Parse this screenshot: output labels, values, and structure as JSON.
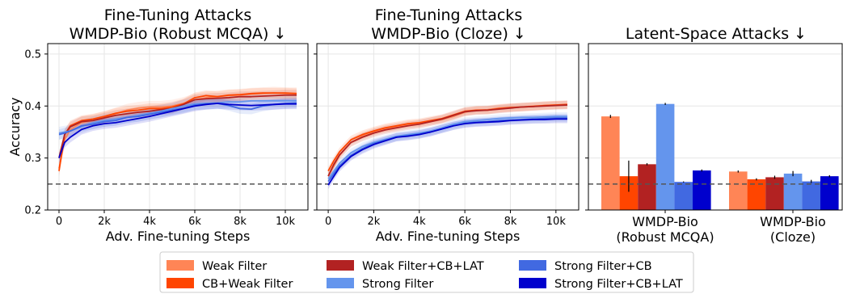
{
  "colors": {
    "weak_filter": "#ff8556",
    "cb_weak_filter": "#ff4500",
    "weak_filter_cb_lat": "#b22222",
    "strong_filter": "#6495ed",
    "strong_filter_cb": "#4169e1",
    "strong_filter_cb_lat": "#0000cd",
    "reference_line": "#555555",
    "grid": "#e6e6e6"
  },
  "legend": [
    "Weak Filter",
    "CB+Weak Filter",
    "Weak Filter+CB+LAT",
    "Strong Filter",
    "Strong Filter+CB",
    "Strong Filter+CB+LAT"
  ],
  "chart_data": [
    {
      "type": "line",
      "title": [
        "Fine-Tuning Attacks",
        "WMDP-Bio (Robust MCQA)  ↓"
      ],
      "xlabel": "Adv. Fine-tuning Steps",
      "ylabel": "Accuracy",
      "xlim": [
        -500,
        11000
      ],
      "ylim": [
        0.2,
        0.52
      ],
      "x_ticks": [
        0,
        2000,
        4000,
        6000,
        8000,
        10000
      ],
      "x_tick_labels": [
        "0",
        "2k",
        "4k",
        "6k",
        "8k",
        "10k"
      ],
      "y_ticks": [
        0.2,
        0.3,
        0.4,
        0.5
      ],
      "y_tick_labels": [
        "0.2",
        "0.3",
        "0.4",
        "0.5"
      ],
      "grid": true,
      "reference_line": 0.25,
      "x": [
        0,
        250,
        500,
        1000,
        1500,
        2000,
        2500,
        3000,
        3500,
        4000,
        4500,
        5000,
        5500,
        6000,
        6500,
        7000,
        7500,
        8000,
        8500,
        9000,
        9500,
        10000,
        10500
      ],
      "series": [
        {
          "name": "Weak Filter",
          "color_key": "weak_filter",
          "band": 0.012,
          "values": [
            0.28,
            0.335,
            0.355,
            0.368,
            0.372,
            0.378,
            0.385,
            0.392,
            0.396,
            0.398,
            0.398,
            0.4,
            0.405,
            0.412,
            0.416,
            0.418,
            0.42,
            0.421,
            0.423,
            0.424,
            0.425,
            0.424,
            0.424
          ]
        },
        {
          "name": "CB+Weak Filter",
          "color_key": "cb_weak_filter",
          "band": 0.01,
          "values": [
            0.275,
            0.345,
            0.362,
            0.372,
            0.375,
            0.38,
            0.386,
            0.39,
            0.392,
            0.395,
            0.395,
            0.398,
            0.404,
            0.416,
            0.42,
            0.418,
            0.421,
            0.422,
            0.424,
            0.425,
            0.425,
            0.425,
            0.424
          ]
        },
        {
          "name": "Weak Filter+CB+LAT",
          "color_key": "weak_filter_cb_lat",
          "band": 0.01,
          "values": [
            0.3,
            0.345,
            0.36,
            0.37,
            0.372,
            0.377,
            0.382,
            0.385,
            0.388,
            0.39,
            0.393,
            0.395,
            0.403,
            0.412,
            0.414,
            0.415,
            0.416,
            0.418,
            0.418,
            0.419,
            0.42,
            0.421,
            0.421
          ]
        },
        {
          "name": "Strong Filter",
          "color_key": "strong_filter",
          "band": 0.012,
          "values": [
            0.348,
            0.35,
            0.352,
            0.36,
            0.368,
            0.372,
            0.375,
            0.378,
            0.382,
            0.386,
            0.39,
            0.395,
            0.4,
            0.404,
            0.405,
            0.406,
            0.408,
            0.408,
            0.41,
            0.41,
            0.41,
            0.41,
            0.41
          ]
        },
        {
          "name": "Strong Filter+CB",
          "color_key": "strong_filter_cb",
          "band": 0.01,
          "values": [
            0.345,
            0.348,
            0.352,
            0.362,
            0.365,
            0.37,
            0.372,
            0.378,
            0.38,
            0.384,
            0.388,
            0.392,
            0.396,
            0.402,
            0.404,
            0.405,
            0.401,
            0.395,
            0.394,
            0.4,
            0.403,
            0.405,
            0.406
          ]
        },
        {
          "name": "Strong Filter+CB+LAT",
          "color_key": "strong_filter_cb_lat",
          "band": 0.01,
          "values": [
            0.3,
            0.33,
            0.34,
            0.355,
            0.362,
            0.366,
            0.368,
            0.372,
            0.376,
            0.38,
            0.385,
            0.39,
            0.395,
            0.4,
            0.403,
            0.405,
            0.403,
            0.402,
            0.401,
            0.402,
            0.403,
            0.404,
            0.404
          ]
        }
      ]
    },
    {
      "type": "line",
      "title": [
        "Fine-Tuning Attacks",
        "WMDP-Bio (Cloze)  ↓"
      ],
      "xlabel": "Adv. Fine-tuning Steps",
      "ylabel": "",
      "xlim": [
        -500,
        11000
      ],
      "ylim": [
        0.2,
        0.52
      ],
      "x_ticks": [
        0,
        2000,
        4000,
        6000,
        8000,
        10000
      ],
      "x_tick_labels": [
        "0",
        "2k",
        "4k",
        "6k",
        "8k",
        "10k"
      ],
      "y_ticks": [
        0.2,
        0.3,
        0.4,
        0.5
      ],
      "y_tick_labels": [
        "",
        "",
        "",
        ""
      ],
      "grid": true,
      "reference_line": 0.25,
      "x": [
        0,
        250,
        500,
        1000,
        1500,
        2000,
        2500,
        3000,
        3500,
        4000,
        4500,
        5000,
        5500,
        6000,
        6500,
        7000,
        7500,
        8000,
        8500,
        9000,
        9500,
        10000,
        10500
      ],
      "series": [
        {
          "name": "Weak Filter",
          "color_key": "weak_filter",
          "band": 0.008,
          "values": [
            0.265,
            0.285,
            0.305,
            0.33,
            0.342,
            0.35,
            0.356,
            0.36,
            0.364,
            0.366,
            0.37,
            0.374,
            0.38,
            0.388,
            0.392,
            0.393,
            0.396,
            0.397,
            0.398,
            0.4,
            0.401,
            0.402,
            0.402
          ]
        },
        {
          "name": "CB+Weak Filter",
          "color_key": "cb_weak_filter",
          "band": 0.008,
          "values": [
            0.275,
            0.295,
            0.312,
            0.335,
            0.345,
            0.352,
            0.358,
            0.362,
            0.366,
            0.368,
            0.372,
            0.376,
            0.383,
            0.39,
            0.392,
            0.392,
            0.395,
            0.397,
            0.398,
            0.399,
            0.401,
            0.402,
            0.403
          ]
        },
        {
          "name": "Weak Filter+CB+LAT",
          "color_key": "weak_filter_cb_lat",
          "band": 0.008,
          "values": [
            0.265,
            0.288,
            0.306,
            0.33,
            0.34,
            0.348,
            0.354,
            0.358,
            0.362,
            0.365,
            0.37,
            0.375,
            0.382,
            0.389,
            0.391,
            0.392,
            0.394,
            0.396,
            0.398,
            0.399,
            0.4,
            0.401,
            0.402
          ]
        },
        {
          "name": "Strong Filter",
          "color_key": "strong_filter",
          "band": 0.008,
          "values": [
            0.26,
            0.275,
            0.29,
            0.31,
            0.322,
            0.33,
            0.336,
            0.342,
            0.345,
            0.348,
            0.352,
            0.358,
            0.365,
            0.37,
            0.372,
            0.374,
            0.376,
            0.377,
            0.378,
            0.378,
            0.379,
            0.38,
            0.38
          ]
        },
        {
          "name": "Strong Filter+CB",
          "color_key": "strong_filter_cb",
          "band": 0.008,
          "values": [
            0.255,
            0.27,
            0.285,
            0.305,
            0.318,
            0.328,
            0.334,
            0.34,
            0.343,
            0.346,
            0.35,
            0.356,
            0.362,
            0.367,
            0.369,
            0.37,
            0.372,
            0.373,
            0.374,
            0.375,
            0.376,
            0.377,
            0.377
          ]
        },
        {
          "name": "Strong Filter+CB+LAT",
          "color_key": "strong_filter_cb_lat",
          "band": 0.008,
          "values": [
            0.248,
            0.265,
            0.282,
            0.303,
            0.316,
            0.326,
            0.333,
            0.34,
            0.342,
            0.345,
            0.35,
            0.356,
            0.362,
            0.366,
            0.368,
            0.369,
            0.37,
            0.372,
            0.373,
            0.374,
            0.374,
            0.375,
            0.375
          ]
        }
      ]
    },
    {
      "type": "bar",
      "title": "Latent-Space Attacks  ↓",
      "ylim": [
        0.2,
        0.52
      ],
      "reference_line": 0.25,
      "grid": true,
      "categories": [
        [
          "WMDP-Bio",
          "(Robust MCQA)"
        ],
        [
          "WMDP-Bio",
          "(Cloze)"
        ]
      ],
      "series": [
        {
          "name": "Weak Filter",
          "color_key": "weak_filter",
          "values": [
            0.38,
            0.274
          ],
          "errors": [
            0.003,
            0.002
          ]
        },
        {
          "name": "CB+Weak Filter",
          "color_key": "cb_weak_filter",
          "values": [
            0.265,
            0.259
          ],
          "errors": [
            0.03,
            0.002
          ]
        },
        {
          "name": "Weak Filter+CB+LAT",
          "color_key": "weak_filter_cb_lat",
          "values": [
            0.288,
            0.263
          ],
          "errors": [
            0.002,
            0.003
          ]
        },
        {
          "name": "Strong Filter",
          "color_key": "strong_filter",
          "values": [
            0.404,
            0.27
          ],
          "errors": [
            0.002,
            0.005
          ]
        },
        {
          "name": "Strong Filter+CB",
          "color_key": "strong_filter_cb",
          "values": [
            0.254,
            0.255
          ],
          "errors": [
            0.001,
            0.003
          ]
        },
        {
          "name": "Strong Filter+CB+LAT",
          "color_key": "strong_filter_cb_lat",
          "values": [
            0.276,
            0.265
          ],
          "errors": [
            0.002,
            0.002
          ]
        }
      ]
    }
  ]
}
